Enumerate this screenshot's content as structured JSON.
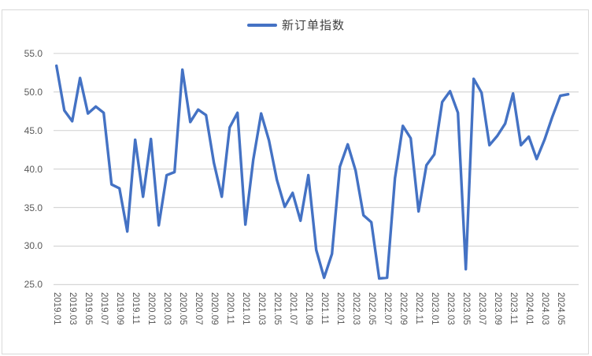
{
  "chart_data": {
    "type": "line",
    "title": "",
    "legend_label": "新订单指数",
    "legend_position": "top-center",
    "grid": "horizontal",
    "ylim": [
      25,
      55
    ],
    "y_step": 5,
    "y_tick_labels": [
      "25.0",
      "30.0",
      "35.0",
      "40.0",
      "45.0",
      "50.0",
      "55.0"
    ],
    "x_tick_labels": [
      "2019.01",
      "2019.03",
      "2019.05",
      "2019.07",
      "2019.09",
      "2019.11",
      "2020.01",
      "2020.03",
      "2020.05",
      "2020.07",
      "2020.09",
      "2020.11",
      "2021.01",
      "2021.03",
      "2021.05",
      "2021.07",
      "2021.09",
      "2021.11",
      "2022.01",
      "2022.03",
      "2022.05",
      "2022.07",
      "2022.09",
      "2022.11",
      "2023.01",
      "2023.03",
      "2023.05",
      "2023.07",
      "2023.09",
      "2023.11",
      "2024.01",
      "2024.03",
      "2024.05"
    ],
    "categories": [
      "2019.01",
      "2019.02",
      "2019.03",
      "2019.04",
      "2019.05",
      "2019.06",
      "2019.07",
      "2019.08",
      "2019.09",
      "2019.10",
      "2019.11",
      "2019.12",
      "2020.01",
      "2020.02",
      "2020.03",
      "2020.04",
      "2020.05",
      "2020.06",
      "2020.07",
      "2020.08",
      "2020.09",
      "2020.10",
      "2020.11",
      "2020.12",
      "2021.01",
      "2021.02",
      "2021.03",
      "2021.04",
      "2021.05",
      "2021.06",
      "2021.07",
      "2021.08",
      "2021.09",
      "2021.10",
      "2021.11",
      "2021.12",
      "2022.01",
      "2022.02",
      "2022.03",
      "2022.04",
      "2022.05",
      "2022.06",
      "2022.07",
      "2022.08",
      "2022.09",
      "2022.10",
      "2022.11",
      "2022.12",
      "2023.01",
      "2023.02",
      "2023.03",
      "2023.04",
      "2023.05",
      "2023.06",
      "2023.07",
      "2023.08",
      "2023.09",
      "2023.10",
      "2023.11",
      "2023.12",
      "2024.01",
      "2024.02",
      "2024.03",
      "2024.04",
      "2024.05",
      "2024.06"
    ],
    "series": [
      {
        "name": "新订单指数",
        "color": "#4472C4",
        "values": [
          53.4,
          47.6,
          46.2,
          51.8,
          47.2,
          48.1,
          47.3,
          38.0,
          37.5,
          31.9,
          43.8,
          36.4,
          43.9,
          32.7,
          39.2,
          39.6,
          52.9,
          46.1,
          47.7,
          47.0,
          40.8,
          36.4,
          45.4,
          47.3,
          32.8,
          41.2,
          47.2,
          43.7,
          38.6,
          35.1,
          36.9,
          33.3,
          39.2,
          29.5,
          25.9,
          29.0,
          40.3,
          43.2,
          39.8,
          34.0,
          33.1,
          25.8,
          25.9,
          38.8,
          45.6,
          44.0,
          34.5,
          40.5,
          41.9,
          48.7,
          50.1,
          47.3,
          27.0,
          51.7,
          49.9,
          43.1,
          44.3,
          45.9,
          49.8,
          43.1,
          44.2,
          41.3,
          43.8,
          46.8,
          49.5,
          49.7
        ]
      }
    ],
    "colors": {
      "line": "#4472C4",
      "grid": "#D6D6D6",
      "tick_text": "#595959",
      "legend_text": "#404040",
      "background": "#FFFFFF",
      "border": "#D9D9D9"
    }
  }
}
